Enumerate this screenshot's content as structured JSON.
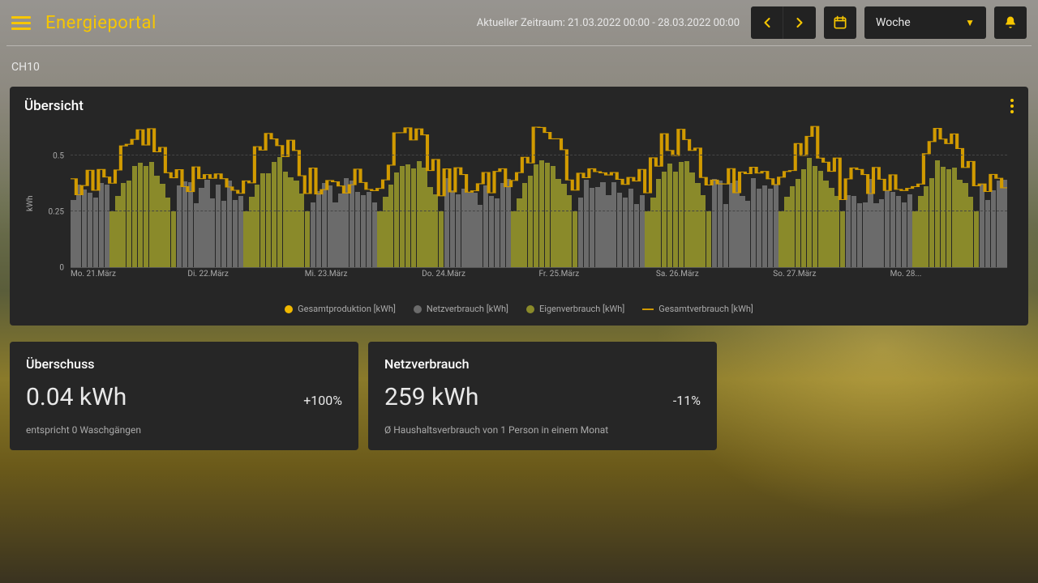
{
  "header": {
    "title": "Energieportal",
    "timerange_label": "Aktueller Zeitraum: 21.03.2022 00:00 - 28.03.2022 00:00",
    "period_selected": "Woche",
    "accent_color": "#f7c600"
  },
  "channel": "CH10",
  "overview": {
    "title": "Übersicht",
    "chart": {
      "type": "stacked-bar+line",
      "ylabel": "kWh",
      "ylim": [
        0,
        0.65
      ],
      "ytick_step": 0.25,
      "yticks": [
        0,
        0.25,
        0.5
      ],
      "x_labels": [
        "Mo. 21.März",
        "Di. 22.März",
        "Mi. 23.März",
        "Do. 24.März",
        "Fr. 25.März",
        "Sa. 26.März",
        "So. 27.März",
        "Mo. 28..."
      ],
      "grid_color": "#444444",
      "background_color": "#262626",
      "colors": {
        "gesamtproduktion": "#f0b800",
        "netzverbrauch": "#6b6b6b",
        "eigenverbrauch": "#8a8a2a",
        "gesamtverbrauch_line": "#d19a00"
      },
      "legend": [
        {
          "label": "Gesamtproduktion [kWh]",
          "color": "#f0b800",
          "shape": "circle"
        },
        {
          "label": "Netzverbrauch [kWh]",
          "color": "#6b6b6b",
          "shape": "circle"
        },
        {
          "label": "Eigenverbrauch [kWh]",
          "color": "#8a8a2a",
          "shape": "circle"
        },
        {
          "label": "Gesamtverbrauch [kWh]",
          "color": "#d19a00",
          "shape": "line"
        }
      ],
      "days": 7,
      "slots_per_day": 24,
      "daylight_start_slot": 7,
      "daylight_end_slot": 18,
      "netzverbrauch_range": [
        0.28,
        0.4
      ],
      "eigenverbrauch_range": [
        0.25,
        0.5
      ],
      "gesamtverbrauch_base_range": [
        0.32,
        0.45
      ],
      "gesamtverbrauch_peak_boost": [
        0.05,
        0.18
      ]
    }
  },
  "stats": [
    {
      "title": "Überschuss",
      "value": "0.04 kWh",
      "pct": "+100%",
      "sub": "entspricht 0 Waschgängen"
    },
    {
      "title": "Netzverbrauch",
      "value": "259 kWh",
      "pct": "-11%",
      "sub": "Ø Haushaltsverbrauch von 1 Person in einem Monat"
    }
  ]
}
